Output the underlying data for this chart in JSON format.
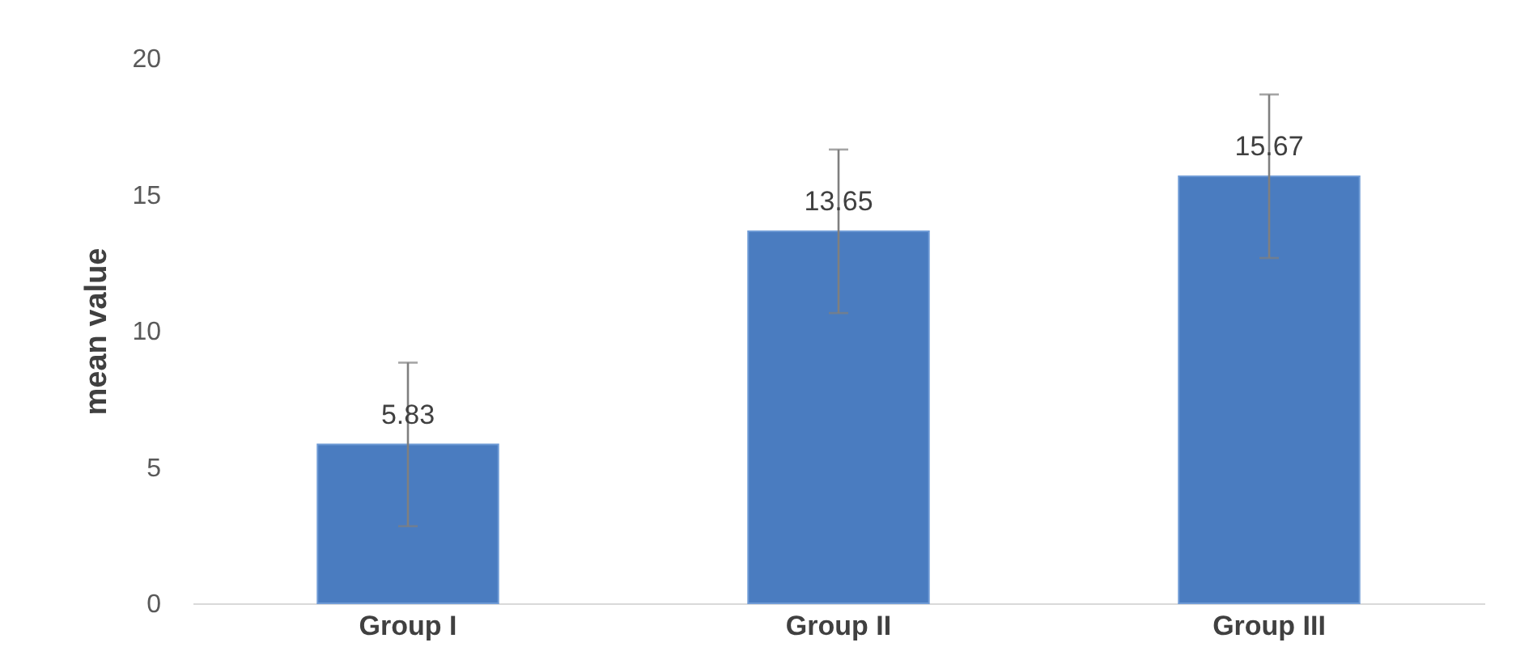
{
  "chart_data": {
    "type": "bar",
    "ylabel": "mean value",
    "categories": [
      "Group I",
      "Group II",
      "Group III"
    ],
    "values": [
      5.83,
      13.65,
      15.67
    ],
    "errors": [
      3,
      3,
      3
    ],
    "color": "#4a7cc0",
    "ylim": [
      0,
      20
    ],
    "yticks": [
      0,
      5,
      10,
      15,
      20
    ],
    "grid": false,
    "data_labels": true
  }
}
